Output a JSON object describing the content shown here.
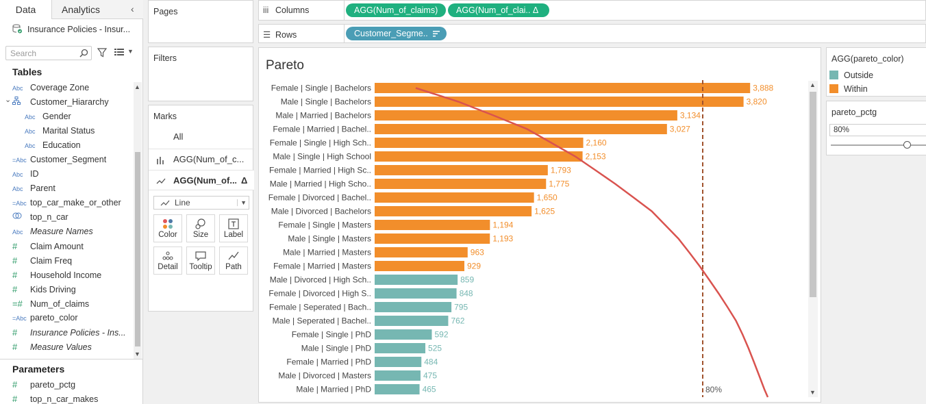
{
  "data_pane": {
    "tab_data": "Data",
    "tab_analytics": "Analytics",
    "collapse_glyph": "‹",
    "datasource": "Insurance Policies - Insur...",
    "search_placeholder": "Search",
    "tables_header": "Tables",
    "parameters_header": "Parameters",
    "fields": [
      {
        "type": "Abc",
        "name": "Coverage Zone",
        "indent": 0
      },
      {
        "type": "hier",
        "name": "Customer_Hiararchy",
        "indent": 0
      },
      {
        "type": "Abc",
        "name": "Gender",
        "indent": 1
      },
      {
        "type": "Abc",
        "name": "Marital Status",
        "indent": 1
      },
      {
        "type": "Abc",
        "name": "Education",
        "indent": 1
      },
      {
        "type": "=Abc",
        "name": "Customer_Segment",
        "indent": 0
      },
      {
        "type": "Abc",
        "name": "ID",
        "indent": 0
      },
      {
        "type": "Abc",
        "name": "Parent",
        "indent": 0
      },
      {
        "type": "=Abc",
        "name": "top_car_make_or_other",
        "indent": 0
      },
      {
        "type": "set",
        "name": "top_n_car",
        "indent": 0
      },
      {
        "type": "Abc",
        "name": "Measure Names",
        "indent": 0,
        "italic": true
      },
      {
        "type": "#",
        "name": "Claim Amount",
        "indent": 0
      },
      {
        "type": "#",
        "name": "Claim Freq",
        "indent": 0
      },
      {
        "type": "#",
        "name": "Household Income",
        "indent": 0
      },
      {
        "type": "#",
        "name": "Kids Driving",
        "indent": 0
      },
      {
        "type": "=#",
        "name": "Num_of_claims",
        "indent": 0
      },
      {
        "type": "=Abc",
        "name": "pareto_color",
        "indent": 0
      },
      {
        "type": "#",
        "name": "Insurance Policies - Ins...",
        "indent": 0,
        "italic": true
      },
      {
        "type": "#",
        "name": "Measure Values",
        "indent": 0,
        "italic": true
      }
    ],
    "parameters": [
      {
        "type": "#",
        "name": "pareto_pctg"
      },
      {
        "type": "#",
        "name": "top_n_car_makes"
      }
    ]
  },
  "cards": {
    "pages": "Pages",
    "filters": "Filters",
    "marks": "Marks",
    "marks_all": "All",
    "marks_layer1": "AGG(Num_of_c...",
    "marks_layer2": "AGG(Num_of...",
    "marks_layer2_delta": "Δ",
    "mark_type": "Line",
    "buttons": [
      "Color",
      "Size",
      "Label",
      "Detail",
      "Tooltip",
      "Path"
    ]
  },
  "shelves": {
    "columns_label": "Columns",
    "rows_label": "Rows",
    "column_pills": [
      "AGG(Num_of_claims)",
      "AGG(Num_of_clai..  Δ"
    ],
    "row_pills": [
      "Customer_Segme.."
    ]
  },
  "legend": {
    "title": "AGG(pareto_color)",
    "items": [
      {
        "label": "Outside",
        "color": "#76b7b2"
      },
      {
        "label": "Within",
        "color": "#f28e2b"
      }
    ]
  },
  "parameter_control": {
    "title": "pareto_pctg",
    "value": "80%",
    "fraction": 0.8
  },
  "chart_data": {
    "type": "bar",
    "title": "Pareto",
    "reference_line_label": "80%",
    "colors": {
      "within": "#f28e2b",
      "outside": "#76b7b2",
      "line": "#d9534f",
      "refline": "#a0522d"
    },
    "categories": [
      "Female | Single | Bachelors",
      "Male | Single | Bachelors",
      "Male | Married | Bachelors",
      "Female | Married | Bachel..",
      "Female | Single | High Sch..",
      "Male | Single | High School",
      "Female | Married | High Sc..",
      "Male | Married | High Scho..",
      "Female | Divorced | Bachel..",
      "Male | Divorced | Bachelors",
      "Female | Single | Masters",
      "Male | Single | Masters",
      "Male | Married | Masters",
      "Female | Married | Masters",
      "Male | Divorced | High Sch..",
      "Female | Divorced | High S..",
      "Female | Seperated | Bach..",
      "Male | Seperated | Bachel..",
      "Female | Single | PhD",
      "Male | Single | PhD",
      "Female | Married | PhD",
      "Male | Divorced | Masters",
      "Male | Married | PhD"
    ],
    "values": [
      3888,
      3820,
      3134,
      3027,
      2160,
      2153,
      1793,
      1775,
      1650,
      1625,
      1194,
      1193,
      963,
      929,
      859,
      848,
      795,
      762,
      592,
      525,
      484,
      475,
      465
    ],
    "value_labels": [
      "3,888",
      "3,820",
      "3,134",
      "3,027",
      "2,160",
      "2,153",
      "1,793",
      "1,775",
      "1,650",
      "1,625",
      "1,194",
      "1,193",
      "963",
      "929",
      "859",
      "848",
      "795",
      "762",
      "592",
      "525",
      "484",
      "475",
      "465"
    ],
    "pareto_group": [
      "Within",
      "Within",
      "Within",
      "Within",
      "Within",
      "Within",
      "Within",
      "Within",
      "Within",
      "Within",
      "Within",
      "Within",
      "Within",
      "Within",
      "Outside",
      "Outside",
      "Outside",
      "Outside",
      "Outside",
      "Outside",
      "Outside",
      "Outside",
      "Outside"
    ],
    "xlim": [
      0,
      4000
    ]
  }
}
